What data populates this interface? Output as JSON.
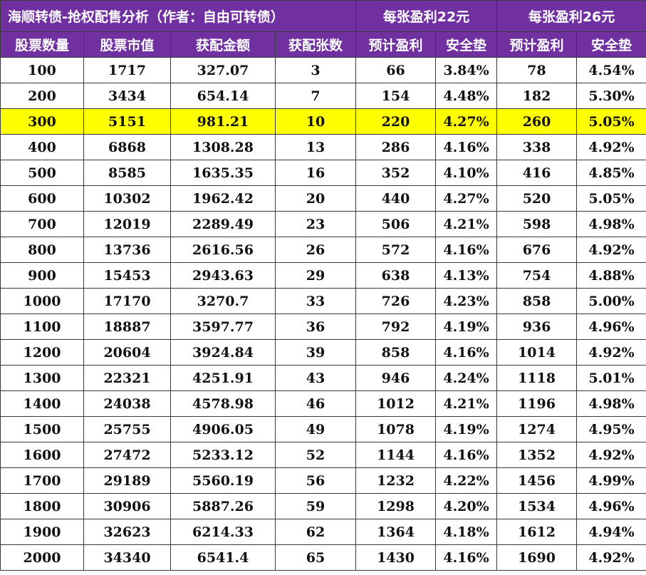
{
  "table": {
    "title": "海顺转债-抢权配售分析（作者：自由可转债）",
    "group_22": "每张盈利22元",
    "group_26": "每张盈利26元",
    "highlight_color": "#ffff00",
    "header_color": "#7030a0",
    "headers": [
      "股票数量",
      "股票市值",
      "获配金额",
      "获配张数",
      "预计盈利",
      "安全垫",
      "预计盈利",
      "安全垫"
    ],
    "highlight_row_index": 2,
    "rows": [
      [
        "100",
        "1717",
        "327.07",
        "3",
        "66",
        "3.84%",
        "78",
        "4.54%"
      ],
      [
        "200",
        "3434",
        "654.14",
        "7",
        "154",
        "4.48%",
        "182",
        "5.30%"
      ],
      [
        "300",
        "5151",
        "981.21",
        "10",
        "220",
        "4.27%",
        "260",
        "5.05%"
      ],
      [
        "400",
        "6868",
        "1308.28",
        "13",
        "286",
        "4.16%",
        "338",
        "4.92%"
      ],
      [
        "500",
        "8585",
        "1635.35",
        "16",
        "352",
        "4.10%",
        "416",
        "4.85%"
      ],
      [
        "600",
        "10302",
        "1962.42",
        "20",
        "440",
        "4.27%",
        "520",
        "5.05%"
      ],
      [
        "700",
        "12019",
        "2289.49",
        "23",
        "506",
        "4.21%",
        "598",
        "4.98%"
      ],
      [
        "800",
        "13736",
        "2616.56",
        "26",
        "572",
        "4.16%",
        "676",
        "4.92%"
      ],
      [
        "900",
        "15453",
        "2943.63",
        "29",
        "638",
        "4.13%",
        "754",
        "4.88%"
      ],
      [
        "1000",
        "17170",
        "3270.7",
        "33",
        "726",
        "4.23%",
        "858",
        "5.00%"
      ],
      [
        "1100",
        "18887",
        "3597.77",
        "36",
        "792",
        "4.19%",
        "936",
        "4.96%"
      ],
      [
        "1200",
        "20604",
        "3924.84",
        "39",
        "858",
        "4.16%",
        "1014",
        "4.92%"
      ],
      [
        "1300",
        "22321",
        "4251.91",
        "43",
        "946",
        "4.24%",
        "1118",
        "5.01%"
      ],
      [
        "1400",
        "24038",
        "4578.98",
        "46",
        "1012",
        "4.21%",
        "1196",
        "4.98%"
      ],
      [
        "1500",
        "25755",
        "4906.05",
        "49",
        "1078",
        "4.19%",
        "1274",
        "4.95%"
      ],
      [
        "1600",
        "27472",
        "5233.12",
        "52",
        "1144",
        "4.16%",
        "1352",
        "4.92%"
      ],
      [
        "1700",
        "29189",
        "5560.19",
        "56",
        "1232",
        "4.22%",
        "1456",
        "4.99%"
      ],
      [
        "1800",
        "30906",
        "5887.26",
        "59",
        "1298",
        "4.20%",
        "1534",
        "4.96%"
      ],
      [
        "1900",
        "32623",
        "6214.33",
        "62",
        "1364",
        "4.18%",
        "1612",
        "4.94%"
      ],
      [
        "2000",
        "34340",
        "6541.4",
        "65",
        "1430",
        "4.16%",
        "1690",
        "4.92%"
      ]
    ]
  }
}
